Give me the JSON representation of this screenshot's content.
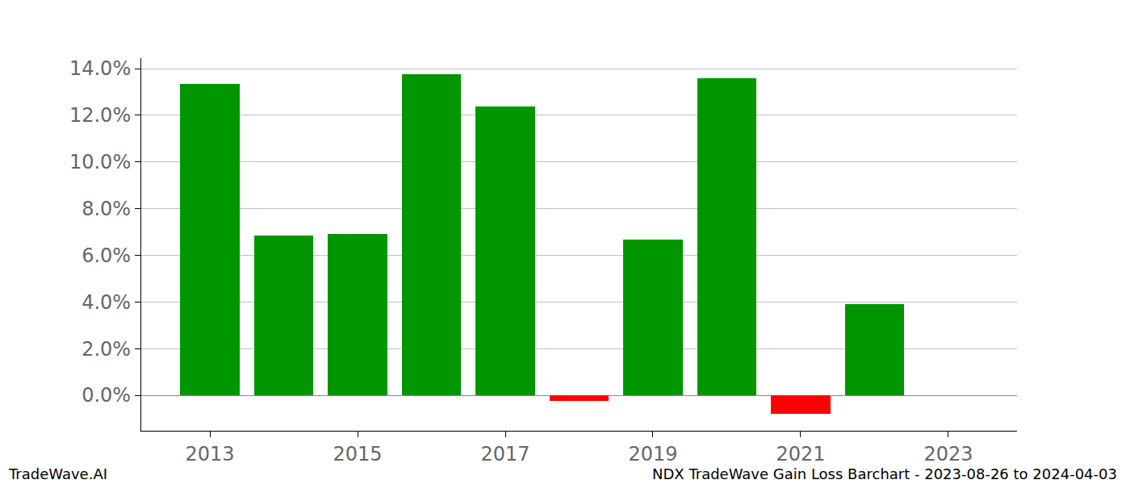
{
  "chart_data": {
    "type": "bar",
    "title": "NDX TradeWave Gain Loss Barchart - 2023-08-26 to 2024-04-03",
    "annotations": [
      "TradeWave.AI"
    ],
    "x": [
      2013,
      2014,
      2015,
      2016,
      2017,
      2018,
      2019,
      2020,
      2021,
      2022
    ],
    "values": [
      13.35,
      6.85,
      6.92,
      13.75,
      12.38,
      -0.25,
      6.68,
      13.6,
      -0.78,
      3.92
    ],
    "colors": [
      "#009600",
      "#009600",
      "#009600",
      "#009600",
      "#009600",
      "#ff0000",
      "#009600",
      "#009600",
      "#ff0000",
      "#009600"
    ],
    "xlim": [
      2012.07,
      2023.93
    ],
    "xticks": [
      2013,
      2015,
      2017,
      2019,
      2021,
      2023
    ],
    "ylim": [
      -1.52,
      14.45
    ],
    "yticks": [
      {
        "value": 0,
        "label": "0.0%"
      },
      {
        "value": 2,
        "label": "2.0%"
      },
      {
        "value": 4,
        "label": "4.0%"
      },
      {
        "value": 6,
        "label": "6.0%"
      },
      {
        "value": 8,
        "label": "8.0%"
      },
      {
        "value": 10,
        "label": "10.0%"
      },
      {
        "value": 12,
        "label": "12.0%"
      },
      {
        "value": 14,
        "label": "14.0%"
      }
    ],
    "grid": "y"
  }
}
